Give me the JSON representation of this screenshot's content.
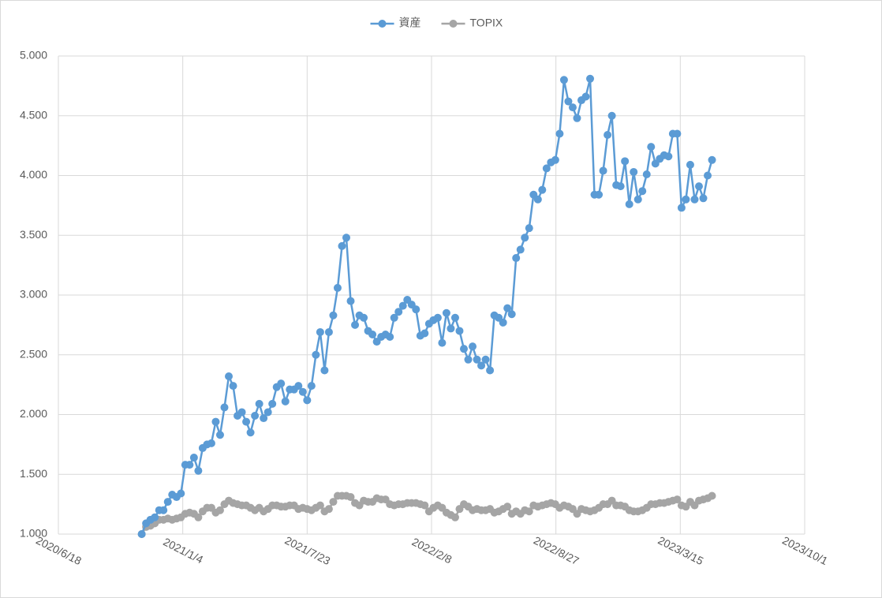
{
  "chart_data": {
    "type": "line",
    "x": [
      "2020/10/30",
      "2020/11/6",
      "2020/11/13",
      "2020/11/20",
      "2020/11/27",
      "2020/12/4",
      "2020/12/11",
      "2020/12/18",
      "2020/12/25",
      "2021/1/1",
      "2021/1/8",
      "2021/1/15",
      "2021/1/22",
      "2021/1/29",
      "2021/2/5",
      "2021/2/12",
      "2021/2/19",
      "2021/2/26",
      "2021/3/5",
      "2021/3/12",
      "2021/3/19",
      "2021/3/26",
      "2021/4/2",
      "2021/4/9",
      "2021/4/16",
      "2021/4/23",
      "2021/4/30",
      "2021/5/7",
      "2021/5/14",
      "2021/5/21",
      "2021/5/28",
      "2021/6/4",
      "2021/6/11",
      "2021/6/18",
      "2021/6/25",
      "2021/7/2",
      "2021/7/9",
      "2021/7/16",
      "2021/7/23",
      "2021/7/30",
      "2021/8/6",
      "2021/8/13",
      "2021/8/20",
      "2021/8/27",
      "2021/9/3",
      "2021/9/10",
      "2021/9/17",
      "2021/9/24",
      "2021/10/1",
      "2021/10/8",
      "2021/10/15",
      "2021/10/22",
      "2021/10/29",
      "2021/11/5",
      "2021/11/12",
      "2021/11/19",
      "2021/11/26",
      "2021/12/3",
      "2021/12/10",
      "2021/12/17",
      "2021/12/24",
      "2021/12/31",
      "2022/1/7",
      "2022/1/14",
      "2022/1/21",
      "2022/1/28",
      "2022/2/4",
      "2022/2/11",
      "2022/2/18",
      "2022/2/25",
      "2022/3/4",
      "2022/3/11",
      "2022/3/18",
      "2022/3/25",
      "2022/4/1",
      "2022/4/8",
      "2022/4/15",
      "2022/4/22",
      "2022/4/29",
      "2022/5/6",
      "2022/5/13",
      "2022/5/20",
      "2022/5/27",
      "2022/6/3",
      "2022/6/10",
      "2022/6/17",
      "2022/6/24",
      "2022/7/1",
      "2022/7/8",
      "2022/7/15",
      "2022/7/22",
      "2022/7/29",
      "2022/8/5",
      "2022/8/12",
      "2022/8/19",
      "2022/8/26",
      "2022/9/2",
      "2022/9/9",
      "2022/9/16",
      "2022/9/23",
      "2022/9/30",
      "2022/10/7",
      "2022/10/14",
      "2022/10/21",
      "2022/10/28",
      "2022/11/4",
      "2022/11/11",
      "2022/11/18",
      "2022/11/25",
      "2022/12/2",
      "2022/12/9",
      "2022/12/16",
      "2022/12/23",
      "2022/12/30",
      "2023/1/6",
      "2023/1/13",
      "2023/1/20",
      "2023/1/27",
      "2023/2/3",
      "2023/2/10",
      "2023/2/17",
      "2023/2/24",
      "2023/3/3",
      "2023/3/10",
      "2023/3/17",
      "2023/3/24",
      "2023/3/31",
      "2023/4/7",
      "2023/4/14",
      "2023/4/21",
      "2023/4/28",
      "2023/5/5"
    ],
    "series": [
      {
        "name": "資産",
        "color": "#5b9bd5",
        "values": [
          1.0,
          1.09,
          1.12,
          1.14,
          1.2,
          1.2,
          1.27,
          1.33,
          1.31,
          1.34,
          1.58,
          1.58,
          1.64,
          1.53,
          1.72,
          1.75,
          1.76,
          1.94,
          1.83,
          2.06,
          2.32,
          2.24,
          1.99,
          2.02,
          1.94,
          1.85,
          1.99,
          2.09,
          1.97,
          2.02,
          2.09,
          2.23,
          2.26,
          2.11,
          2.21,
          2.21,
          2.24,
          2.19,
          2.12,
          2.24,
          2.5,
          2.69,
          2.37,
          2.69,
          2.83,
          3.06,
          3.41,
          3.48,
          2.95,
          2.75,
          2.83,
          2.81,
          2.7,
          2.67,
          2.61,
          2.65,
          2.67,
          2.65,
          2.81,
          2.86,
          2.91,
          2.96,
          2.92,
          2.88,
          2.66,
          2.68,
          2.76,
          2.79,
          2.81,
          2.6,
          2.85,
          2.72,
          2.81,
          2.7,
          2.55,
          2.46,
          2.57,
          2.46,
          2.41,
          2.46,
          2.37,
          2.83,
          2.81,
          2.77,
          2.89,
          2.84,
          3.31,
          3.38,
          3.48,
          3.56,
          3.84,
          3.8,
          3.88,
          4.06,
          4.11,
          4.13,
          4.35,
          4.8,
          4.62,
          4.57,
          4.48,
          4.63,
          4.66,
          4.81,
          3.84,
          3.84,
          4.04,
          4.34,
          4.5,
          3.92,
          3.91,
          4.12,
          3.76,
          4.03,
          3.8,
          3.87,
          4.01,
          4.24,
          4.1,
          4.14,
          4.17,
          4.16,
          4.35,
          4.35,
          3.73,
          3.8,
          4.09,
          3.8,
          3.91,
          3.81,
          4.0,
          4.13
        ]
      },
      {
        "name": "TOPIX",
        "color": "#a5a5a5",
        "values": [
          1.0,
          1.06,
          1.07,
          1.09,
          1.12,
          1.12,
          1.13,
          1.12,
          1.13,
          1.14,
          1.17,
          1.18,
          1.17,
          1.14,
          1.19,
          1.22,
          1.22,
          1.18,
          1.2,
          1.25,
          1.28,
          1.26,
          1.25,
          1.24,
          1.24,
          1.22,
          1.2,
          1.22,
          1.19,
          1.21,
          1.24,
          1.24,
          1.23,
          1.23,
          1.24,
          1.24,
          1.21,
          1.22,
          1.21,
          1.2,
          1.22,
          1.24,
          1.19,
          1.21,
          1.27,
          1.32,
          1.32,
          1.32,
          1.31,
          1.26,
          1.24,
          1.28,
          1.27,
          1.27,
          1.3,
          1.29,
          1.29,
          1.25,
          1.24,
          1.25,
          1.25,
          1.26,
          1.26,
          1.26,
          1.25,
          1.24,
          1.19,
          1.22,
          1.24,
          1.22,
          1.18,
          1.16,
          1.14,
          1.21,
          1.25,
          1.23,
          1.2,
          1.21,
          1.2,
          1.2,
          1.21,
          1.18,
          1.19,
          1.21,
          1.23,
          1.17,
          1.19,
          1.17,
          1.2,
          1.19,
          1.24,
          1.23,
          1.24,
          1.25,
          1.26,
          1.25,
          1.22,
          1.24,
          1.23,
          1.21,
          1.17,
          1.21,
          1.2,
          1.19,
          1.2,
          1.22,
          1.25,
          1.25,
          1.28,
          1.24,
          1.24,
          1.23,
          1.2,
          1.19,
          1.19,
          1.2,
          1.22,
          1.25,
          1.25,
          1.26,
          1.26,
          1.27,
          1.28,
          1.29,
          1.24,
          1.23,
          1.27,
          1.24,
          1.28,
          1.29,
          1.3,
          1.32
        ]
      }
    ],
    "xlim": [
      "2020/6/18",
      "2023/10/1"
    ],
    "xticks": [
      "2020/6/18",
      "2021/1/4",
      "2021/7/23",
      "2022/2/8",
      "2022/8/27",
      "2023/3/15",
      "2023/10/1"
    ],
    "ylim": [
      1,
      5
    ],
    "yticks": [
      {
        "value": 1,
        "label": "1.000"
      },
      {
        "value": 1.5,
        "label": "1.500"
      },
      {
        "value": 2,
        "label": "2.000"
      },
      {
        "value": 2.5,
        "label": "2.500"
      },
      {
        "value": 3,
        "label": "3.000"
      },
      {
        "value": 3.5,
        "label": "3.500"
      },
      {
        "value": 4,
        "label": "4.000"
      },
      {
        "value": 4.5,
        "label": "4.500"
      },
      {
        "value": 5,
        "label": "5.000"
      }
    ],
    "grid": true,
    "legend": "top"
  }
}
